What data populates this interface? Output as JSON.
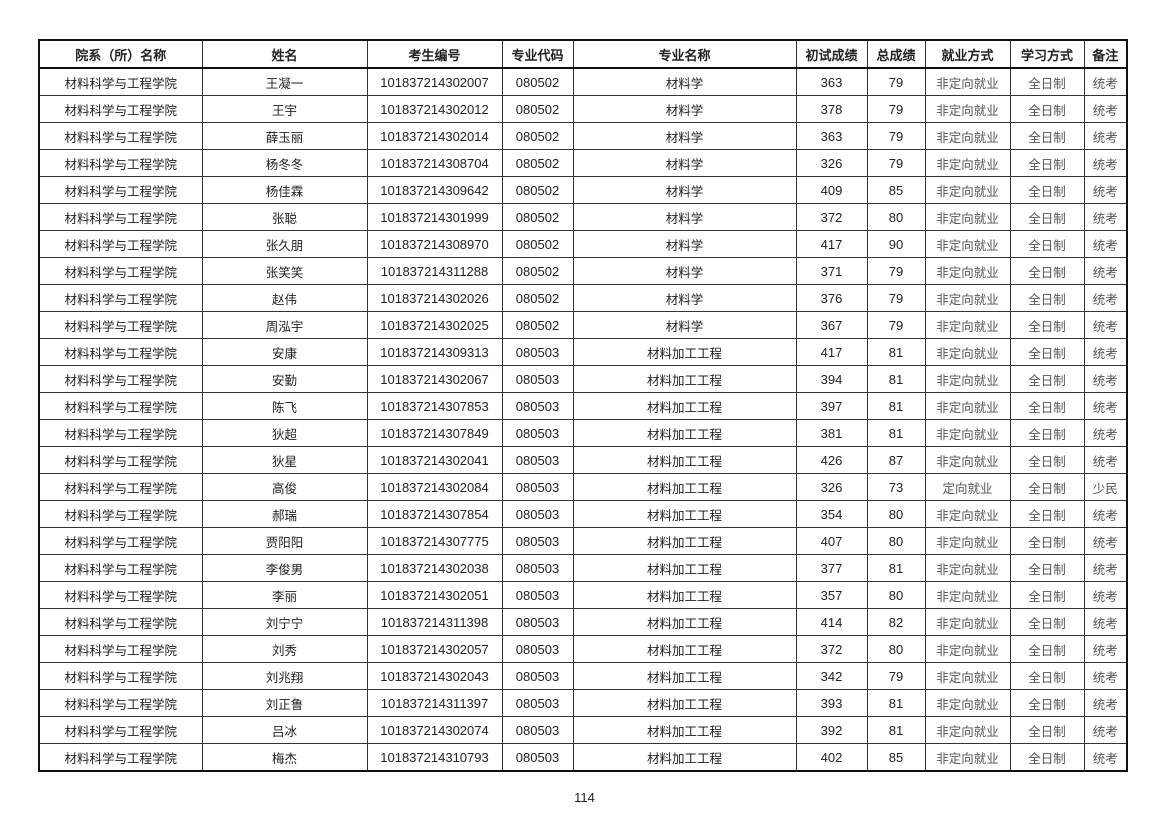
{
  "table": {
    "headers": [
      "院系（所）名称",
      "姓名",
      "考生编号",
      "专业代码",
      "专业名称",
      "初试成绩",
      "总成绩",
      "就业方式",
      "学习方式",
      "备注"
    ],
    "rows": [
      [
        "材料科学与工程学院",
        "王凝一",
        "101837214302007",
        "080502",
        "材料学",
        "363",
        "79",
        "非定向就业",
        "全日制",
        "统考"
      ],
      [
        "材料科学与工程学院",
        "王宇",
        "101837214302012",
        "080502",
        "材料学",
        "378",
        "79",
        "非定向就业",
        "全日制",
        "统考"
      ],
      [
        "材料科学与工程学院",
        "薛玉丽",
        "101837214302014",
        "080502",
        "材料学",
        "363",
        "79",
        "非定向就业",
        "全日制",
        "统考"
      ],
      [
        "材料科学与工程学院",
        "杨冬冬",
        "101837214308704",
        "080502",
        "材料学",
        "326",
        "79",
        "非定向就业",
        "全日制",
        "统考"
      ],
      [
        "材料科学与工程学院",
        "杨佳霖",
        "101837214309642",
        "080502",
        "材料学",
        "409",
        "85",
        "非定向就业",
        "全日制",
        "统考"
      ],
      [
        "材料科学与工程学院",
        "张聪",
        "101837214301999",
        "080502",
        "材料学",
        "372",
        "80",
        "非定向就业",
        "全日制",
        "统考"
      ],
      [
        "材料科学与工程学院",
        "张久朋",
        "101837214308970",
        "080502",
        "材料学",
        "417",
        "90",
        "非定向就业",
        "全日制",
        "统考"
      ],
      [
        "材料科学与工程学院",
        "张笑笑",
        "101837214311288",
        "080502",
        "材料学",
        "371",
        "79",
        "非定向就业",
        "全日制",
        "统考"
      ],
      [
        "材料科学与工程学院",
        "赵伟",
        "101837214302026",
        "080502",
        "材料学",
        "376",
        "79",
        "非定向就业",
        "全日制",
        "统考"
      ],
      [
        "材料科学与工程学院",
        "周泓宇",
        "101837214302025",
        "080502",
        "材料学",
        "367",
        "79",
        "非定向就业",
        "全日制",
        "统考"
      ],
      [
        "材料科学与工程学院",
        "安康",
        "101837214309313",
        "080503",
        "材料加工工程",
        "417",
        "81",
        "非定向就业",
        "全日制",
        "统考"
      ],
      [
        "材料科学与工程学院",
        "安勤",
        "101837214302067",
        "080503",
        "材料加工工程",
        "394",
        "81",
        "非定向就业",
        "全日制",
        "统考"
      ],
      [
        "材料科学与工程学院",
        "陈飞",
        "101837214307853",
        "080503",
        "材料加工工程",
        "397",
        "81",
        "非定向就业",
        "全日制",
        "统考"
      ],
      [
        "材料科学与工程学院",
        "狄超",
        "101837214307849",
        "080503",
        "材料加工工程",
        "381",
        "81",
        "非定向就业",
        "全日制",
        "统考"
      ],
      [
        "材料科学与工程学院",
        "狄星",
        "101837214302041",
        "080503",
        "材料加工工程",
        "426",
        "87",
        "非定向就业",
        "全日制",
        "统考"
      ],
      [
        "材料科学与工程学院",
        "高俊",
        "101837214302084",
        "080503",
        "材料加工工程",
        "326",
        "73",
        "定向就业",
        "全日制",
        "少民"
      ],
      [
        "材料科学与工程学院",
        "郝瑞",
        "101837214307854",
        "080503",
        "材料加工工程",
        "354",
        "80",
        "非定向就业",
        "全日制",
        "统考"
      ],
      [
        "材料科学与工程学院",
        "贾阳阳",
        "101837214307775",
        "080503",
        "材料加工工程",
        "407",
        "80",
        "非定向就业",
        "全日制",
        "统考"
      ],
      [
        "材料科学与工程学院",
        "李俊男",
        "101837214302038",
        "080503",
        "材料加工工程",
        "377",
        "81",
        "非定向就业",
        "全日制",
        "统考"
      ],
      [
        "材料科学与工程学院",
        "李丽",
        "101837214302051",
        "080503",
        "材料加工工程",
        "357",
        "80",
        "非定向就业",
        "全日制",
        "统考"
      ],
      [
        "材料科学与工程学院",
        "刘宁宁",
        "101837214311398",
        "080503",
        "材料加工工程",
        "414",
        "82",
        "非定向就业",
        "全日制",
        "统考"
      ],
      [
        "材料科学与工程学院",
        "刘秀",
        "101837214302057",
        "080503",
        "材料加工工程",
        "372",
        "80",
        "非定向就业",
        "全日制",
        "统考"
      ],
      [
        "材料科学与工程学院",
        "刘兆翔",
        "101837214302043",
        "080503",
        "材料加工工程",
        "342",
        "79",
        "非定向就业",
        "全日制",
        "统考"
      ],
      [
        "材料科学与工程学院",
        "刘正鲁",
        "101837214311397",
        "080503",
        "材料加工工程",
        "393",
        "81",
        "非定向就业",
        "全日制",
        "统考"
      ],
      [
        "材料科学与工程学院",
        "吕冰",
        "101837214302074",
        "080503",
        "材料加工工程",
        "392",
        "81",
        "非定向就业",
        "全日制",
        "统考"
      ],
      [
        "材料科学与工程学院",
        "梅杰",
        "101837214310793",
        "080503",
        "材料加工工程",
        "402",
        "85",
        "非定向就业",
        "全日制",
        "统考"
      ]
    ]
  },
  "footer": {
    "page_number": "114"
  }
}
